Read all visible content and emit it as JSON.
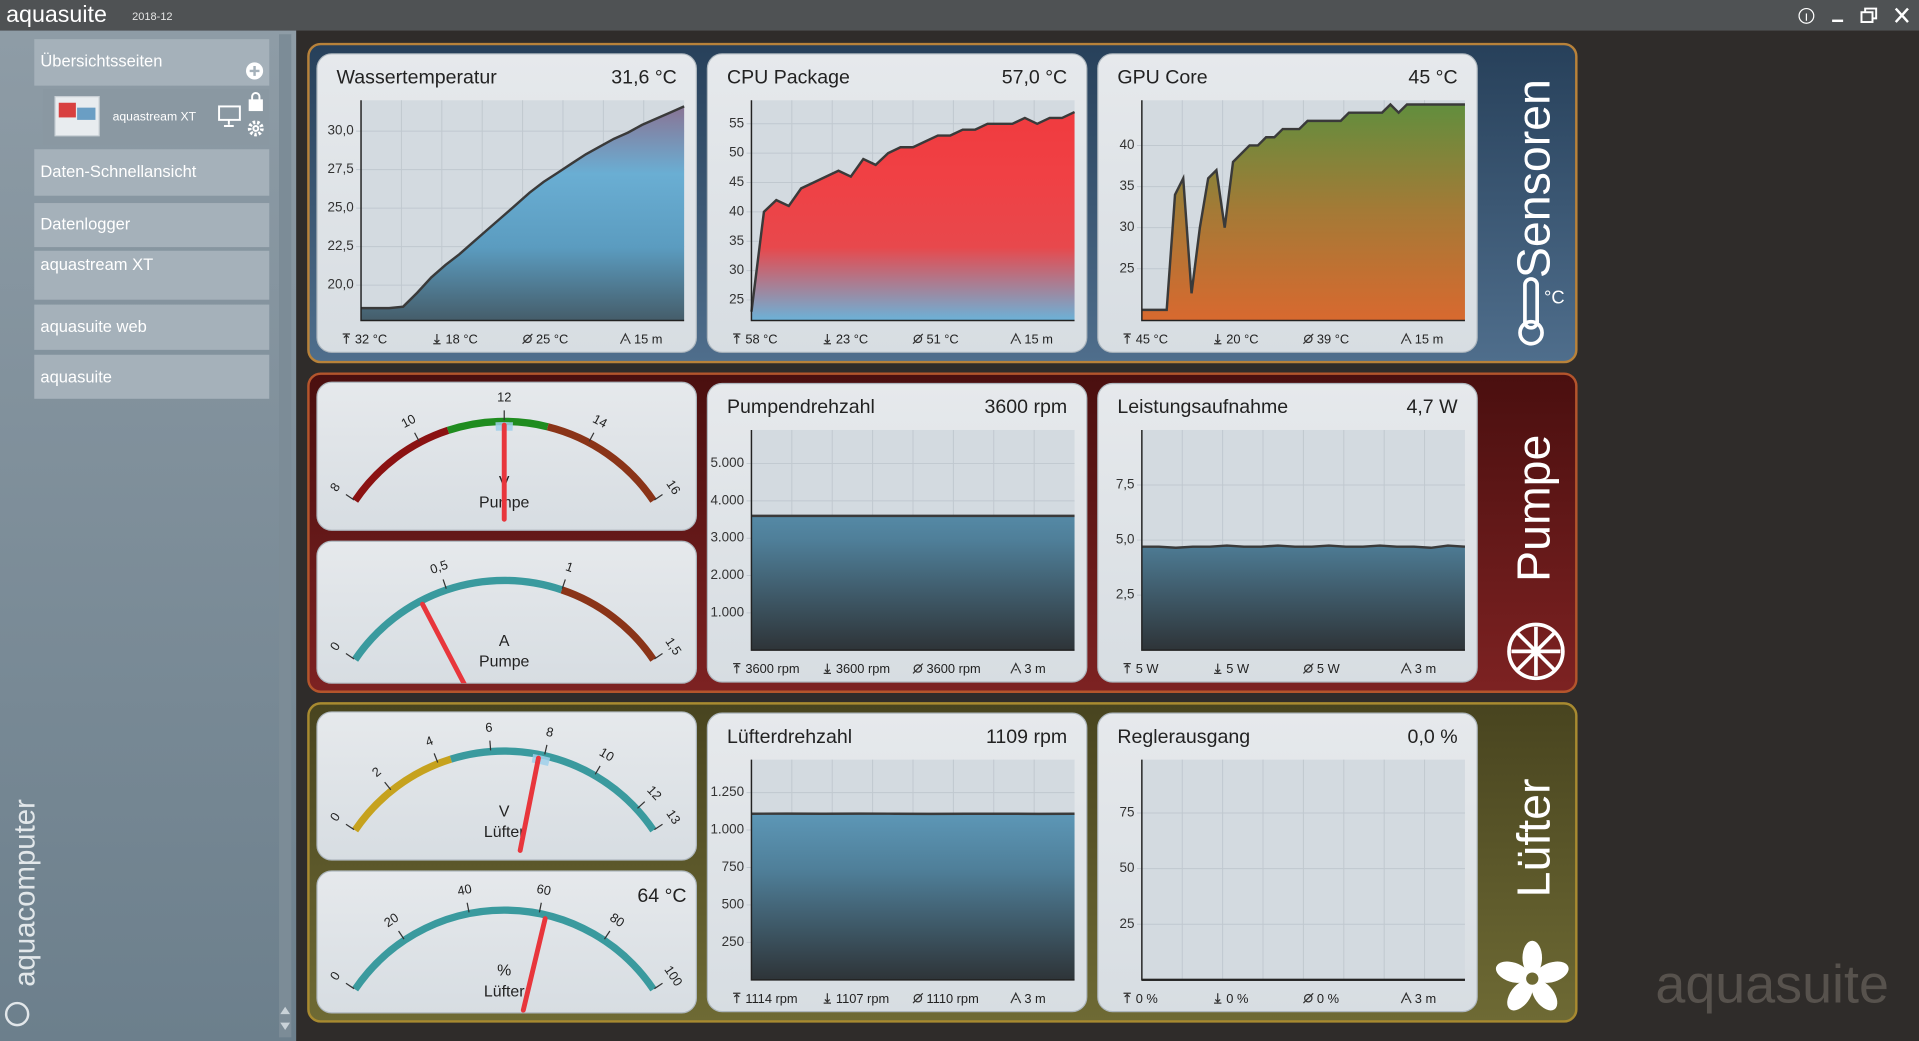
{
  "app": {
    "name": "aquasuite",
    "version": "2018-12"
  },
  "sidebar": {
    "items": [
      "Übersichtsseiten",
      "aquastream XT",
      "Daten-Schnellansicht",
      "Datenlogger",
      "aquastream XT",
      "aquasuite web",
      "aquasuite"
    ],
    "brand": "aquacomputer"
  },
  "watermark": "aquasuite",
  "sections": [
    {
      "title": "Sensoren",
      "unit": "°C",
      "bg": [
        "#27405a",
        "#4f6e8c"
      ],
      "border": "#b8823a",
      "cards": [
        {
          "type": "line",
          "title": "Wassertemperatur",
          "value": "31,6 °C",
          "ylim": [
            17.7,
            32
          ],
          "yticks": [
            {
              "value": 20,
              "label": "20,0"
            },
            {
              "value": 22.5,
              "label": "22,5"
            },
            {
              "value": 25,
              "label": "25,0"
            },
            {
              "value": 27.5,
              "label": "27,5"
            },
            {
              "value": 30,
              "label": "30,0"
            }
          ],
          "values": [
            18.5,
            18.5,
            18.5,
            18.6,
            19.5,
            20.5,
            21.3,
            22.0,
            22.8,
            23.6,
            24.4,
            25.2,
            26.0,
            26.7,
            27.3,
            27.9,
            28.5,
            29.0,
            29.5,
            29.9,
            30.4,
            30.8,
            31.2,
            31.6
          ],
          "fill": [
            "#8c6f8f",
            "#6aaed3",
            "#5b9cc0",
            "#455d6a"
          ],
          "stats": [
            "32 °C",
            "18 °C",
            "25 °C",
            "15 m"
          ]
        },
        {
          "type": "line",
          "title": "CPU Package",
          "value": "57,0 °C",
          "ylim": [
            21.5,
            59
          ],
          "yticks": [
            25,
            30,
            35,
            40,
            45,
            50,
            55
          ],
          "values": [
            23,
            40,
            42,
            41,
            44,
            45,
            46,
            47,
            46,
            49,
            48,
            50,
            51,
            51,
            52,
            53,
            53,
            54,
            54,
            55,
            55,
            55,
            56,
            55,
            56,
            56,
            57
          ],
          "fill": [
            "#f03a3e",
            "#f04044",
            "#e8484c",
            "#6cb2d8"
          ],
          "stats": [
            "58 °C",
            "23 °C",
            "51 °C",
            "15 m"
          ]
        },
        {
          "type": "line",
          "title": "GPU Core",
          "value": "45 °C",
          "ylim": [
            18.7,
            45.5
          ],
          "yticks": [
            25,
            30,
            35,
            40
          ],
          "values": [
            20,
            20,
            20,
            20,
            34,
            36,
            22,
            30,
            36,
            37,
            30,
            38,
            39,
            40,
            40,
            41,
            41,
            42,
            42,
            42,
            43,
            43,
            43,
            43,
            43,
            44,
            44,
            44,
            44,
            44,
            45,
            44,
            45,
            45,
            45,
            45,
            45,
            45,
            45,
            45
          ],
          "fill": [
            "#5f8f3e",
            "#a47a36",
            "#d8692f"
          ],
          "stats": [
            "45 °C",
            "20 °C",
            "39 °C",
            "15 m"
          ]
        }
      ]
    },
    {
      "title": "Pumpe",
      "bg": [
        "#4a0f0f",
        "#7d2222"
      ],
      "border": "#b4552c",
      "cards": [
        {
          "type": "gauge",
          "unit": "V",
          "label": "Pumpe",
          "range": [
            8,
            16
          ],
          "ticks": [
            8,
            10,
            12,
            14,
            16
          ],
          "segments": [
            {
              "from": 8,
              "to": 10.7,
              "color": "#8b1212"
            },
            {
              "from": 10.7,
              "to": 13,
              "color": "#1f8c1f"
            },
            {
              "from": 13,
              "to": 16,
              "color": "#8a3418"
            }
          ],
          "value": 12,
          "marker": 12
        },
        {
          "type": "gauge",
          "unit": "A",
          "label": "Pumpe",
          "range": [
            0,
            1.5
          ],
          "ticks": [
            0,
            {
              "value": 0.5,
              "label": "0,5"
            },
            1,
            {
              "value": 1.5,
              "label": "1,5"
            }
          ],
          "segments": [
            {
              "from": 0,
              "to": 1,
              "color": "#3a9a9e"
            },
            {
              "from": 1,
              "to": 1.5,
              "color": "#8a3418"
            }
          ],
          "value": 0.38
        },
        {
          "type": "line",
          "title": "Pumpendrehzahl",
          "value": "3600 rpm",
          "ylim": [
            0,
            5900
          ],
          "yticks": [
            {
              "value": 1000,
              "label": "1.000"
            },
            {
              "value": 2000,
              "label": "2.000"
            },
            {
              "value": 3000,
              "label": "3.000"
            },
            {
              "value": 4000,
              "label": "4.000"
            },
            {
              "value": 5000,
              "label": "5.000"
            }
          ],
          "values": [
            3600,
            3600,
            3600,
            3600,
            3600,
            3600,
            3600,
            3600,
            3600,
            3600
          ],
          "fill": [
            "#6aaed3",
            "#4f7f99",
            "#2e3438"
          ],
          "stats": [
            "3600 rpm",
            "3600 rpm",
            "3600 rpm",
            "3 m"
          ]
        },
        {
          "type": "line",
          "title": "Leistungsaufnahme",
          "value": "4,7 W",
          "ylim": [
            0,
            10
          ],
          "yticks": [
            {
              "value": 2.5,
              "label": "2,5"
            },
            {
              "value": 5,
              "label": "5,0"
            },
            {
              "value": 7.5,
              "label": "7,5"
            }
          ],
          "values": [
            4.7,
            4.7,
            4.65,
            4.7,
            4.7,
            4.75,
            4.7,
            4.7,
            4.75,
            4.7,
            4.7,
            4.75,
            4.7,
            4.7,
            4.75,
            4.7,
            4.7,
            4.65,
            4.75,
            4.7
          ],
          "fill": [
            "#6aaed3",
            "#4f7f99",
            "#2e3438"
          ],
          "stats": [
            "5 W",
            "5 W",
            "5 W",
            "3 m"
          ]
        }
      ]
    },
    {
      "title": "Lüfter",
      "bg": [
        "#48441f",
        "#6e6a34"
      ],
      "border": "#a88a30",
      "cards": [
        {
          "type": "gauge",
          "unit": "V",
          "label": "Lüfter",
          "range": [
            0,
            13
          ],
          "ticks": [
            0,
            2,
            4,
            6,
            8,
            10,
            12,
            13
          ],
          "segments": [
            {
              "from": 0,
              "to": 4.5,
              "color": "#c6a21e"
            },
            {
              "from": 4.5,
              "to": 13,
              "color": "#3a9a9e"
            }
          ],
          "value": 7.8,
          "marker": 7.9
        },
        {
          "type": "gauge",
          "unit": "%",
          "label": "Lüfter",
          "range": [
            0,
            100
          ],
          "ticks": [
            0,
            20,
            40,
            60,
            80,
            100
          ],
          "segments": [
            {
              "from": 0,
              "to": 100,
              "color": "#3a9a9e"
            }
          ],
          "value": 62,
          "reading": "64 °C"
        },
        {
          "type": "line",
          "title": "Lüfterdrehzahl",
          "value": "1109 rpm",
          "ylim": [
            0,
            1470
          ],
          "yticks": [
            250,
            500,
            750,
            {
              "value": 1000,
              "label": "1.000"
            },
            {
              "value": 1250,
              "label": "1.250"
            }
          ],
          "values": [
            1109,
            1110,
            1109,
            1110,
            1109,
            1108,
            1109,
            1109,
            1108,
            1109
          ],
          "fill": [
            "#6aaed3",
            "#4f7f99",
            "#2e3438"
          ],
          "stats": [
            "1114 rpm",
            "1107 rpm",
            "1110 rpm",
            "3 m"
          ]
        },
        {
          "type": "line",
          "title": "Reglerausgang",
          "value": "0,0 %",
          "ylim": [
            0,
            99
          ],
          "yticks": [
            25,
            50,
            75
          ],
          "values": [
            0,
            0,
            0,
            0,
            0,
            0,
            0,
            0,
            0,
            0
          ],
          "fill": [
            "#6aaed3",
            "#4f7f99",
            "#2e3438"
          ],
          "stats": [
            "0 %",
            "0 %",
            "0 %",
            "3 m"
          ]
        }
      ]
    }
  ]
}
